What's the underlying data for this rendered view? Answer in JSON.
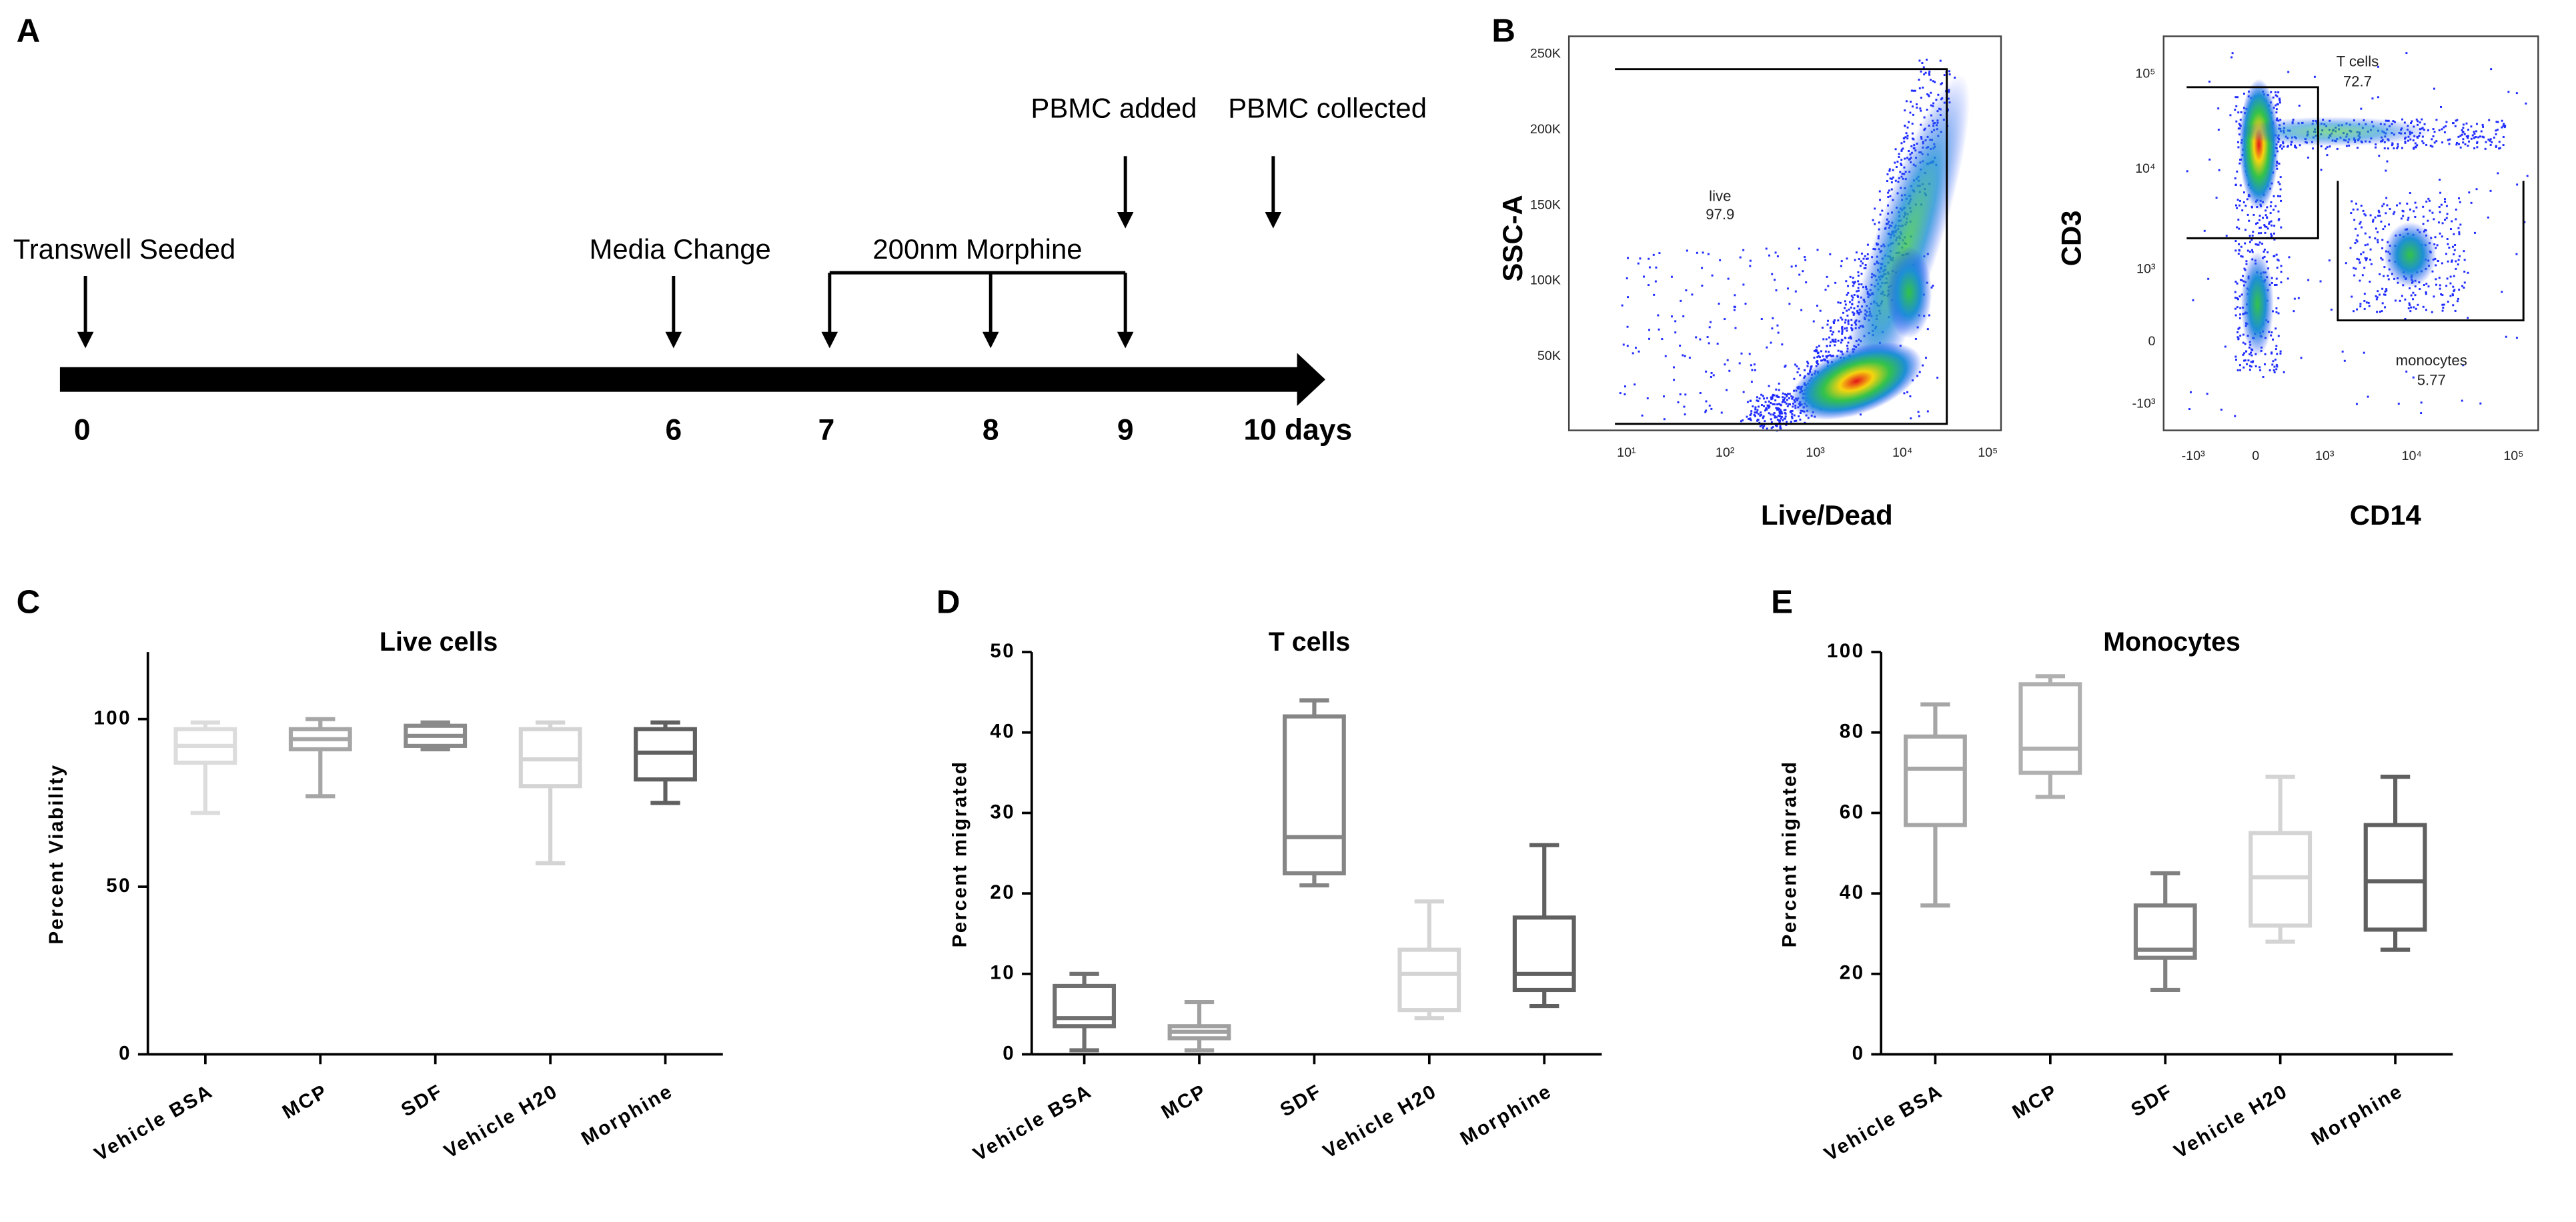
{
  "panel_labels": [
    "A",
    "B",
    "C",
    "D",
    "E"
  ],
  "timeline": {
    "events": [
      "Transwell Seeded",
      "Media Change",
      "200nm Morphine",
      "PBMC added",
      "PBMC collected"
    ],
    "days": [
      "0",
      "6",
      "7",
      "8",
      "9",
      "10 days"
    ]
  },
  "flow": [
    {
      "y_label": "SSC-A",
      "x_label": "Live/Dead",
      "yticks": [
        "250K",
        "200K",
        "150K",
        "100K",
        "50K"
      ],
      "xticks": [
        "10¹",
        "10²",
        "10³",
        "10⁴",
        "10⁵"
      ],
      "gates": [
        {
          "name": "live",
          "value": "97.9"
        }
      ]
    },
    {
      "y_label": "CD3",
      "x_label": "CD14",
      "yticks": [
        "10⁵",
        "10⁴",
        "10³",
        "0",
        "-10³"
      ],
      "xticks": [
        "-10³",
        "0",
        "10³",
        "10⁴",
        "10⁵"
      ],
      "gates": [
        {
          "name": "T cells",
          "value": "72.7"
        },
        {
          "name": "monocytes",
          "value": "5.77"
        }
      ]
    }
  ],
  "chart_data": [
    {
      "type": "box",
      "title": "Live cells",
      "y_label": "Percent Viability",
      "categories": [
        "Vehicle BSA",
        "MCP",
        "SDF",
        "Vehicle H20",
        "Morphine"
      ],
      "values": [
        [
          72,
          87,
          92,
          97,
          99
        ],
        [
          77,
          91,
          94,
          97,
          100
        ],
        [
          91,
          92,
          95,
          98,
          99
        ],
        [
          57,
          80,
          88,
          97,
          99
        ],
        [
          75,
          82,
          90,
          97,
          99
        ]
      ],
      "colors": [
        "#dcdcdc",
        "#a6a6a6",
        "#8a8a8a",
        "#d4d4d4",
        "#606060"
      ],
      "ylim": [
        0,
        120
      ],
      "yticks": [
        0,
        50,
        100
      ]
    },
    {
      "type": "box",
      "title": "T cells",
      "y_label": "Percent migrated",
      "categories": [
        "Vehicle BSA",
        "MCP",
        "SDF",
        "Vehicle H20",
        "Morphine"
      ],
      "values": [
        [
          0.5,
          3.5,
          4.5,
          8.5,
          10
        ],
        [
          0.5,
          2,
          2.8,
          3.5,
          6.5
        ],
        [
          21,
          22.5,
          27,
          42,
          44
        ],
        [
          4.5,
          5.5,
          10,
          13,
          19
        ],
        [
          6,
          8,
          10,
          17,
          26
        ]
      ],
      "colors": [
        "#707070",
        "#a0a0a0",
        "#858585",
        "#d4d4d4",
        "#606060"
      ],
      "ylim": [
        0,
        50
      ],
      "yticks": [
        0,
        10,
        20,
        30,
        40,
        50
      ]
    },
    {
      "type": "box",
      "title": "Monocytes",
      "y_label": "Percent migrated",
      "categories": [
        "Vehicle BSA",
        "MCP",
        "SDF",
        "Vehicle H20",
        "Morphine"
      ],
      "values": [
        [
          37,
          57,
          71,
          79,
          87
        ],
        [
          64,
          70,
          76,
          92,
          94
        ],
        [
          16,
          24,
          26,
          37,
          45
        ],
        [
          28,
          32,
          44,
          55,
          69
        ],
        [
          26,
          31,
          43,
          57,
          69
        ]
      ],
      "colors": [
        "#a6a6a6",
        "#b0b0b0",
        "#808080",
        "#d4d4d4",
        "#606060"
      ],
      "ylim": [
        0,
        100
      ],
      "yticks": [
        0,
        20,
        40,
        60,
        80,
        100
      ]
    }
  ]
}
